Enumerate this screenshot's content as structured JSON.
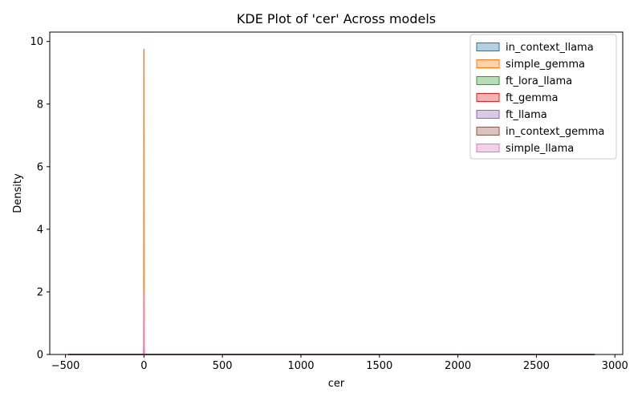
{
  "chart_data": {
    "type": "area",
    "title": "KDE Plot of 'cer' Across models",
    "xlabel": "cer",
    "ylabel": "Density",
    "xlim": [
      -600,
      3050
    ],
    "ylim": [
      0,
      10.3
    ],
    "xticks": [
      -500,
      0,
      500,
      1000,
      1500,
      2000,
      2500,
      3000
    ],
    "yticks": [
      0,
      2,
      4,
      6,
      8,
      10
    ],
    "grid": false,
    "legend_position": "top-right",
    "series": [
      {
        "name": "in_context_llama",
        "color": "#1f77b4",
        "points": [
          [
            -480,
            0
          ],
          [
            -5,
            0
          ],
          [
            0,
            0.05
          ],
          [
            5,
            0
          ],
          [
            2870,
            0
          ]
        ]
      },
      {
        "name": "simple_gemma",
        "color": "#ff7f0e",
        "points": [
          [
            -4,
            0
          ],
          [
            -1,
            0
          ],
          [
            0,
            9.75
          ],
          [
            1,
            0
          ],
          [
            4,
            0
          ]
        ]
      },
      {
        "name": "ft_lora_llama",
        "color": "#2ca02c",
        "points": [
          [
            -10,
            0
          ],
          [
            -2,
            0
          ],
          [
            0,
            0.15
          ],
          [
            2,
            0
          ],
          [
            10,
            0
          ]
        ]
      },
      {
        "name": "ft_gemma",
        "color": "#d62728",
        "points": [
          [
            -480,
            0
          ],
          [
            -10,
            0
          ],
          [
            0,
            0.02
          ],
          [
            10,
            0
          ],
          [
            2870,
            0
          ]
        ]
      },
      {
        "name": "ft_llama",
        "color": "#9467bd",
        "points": [
          [
            -8,
            0
          ],
          [
            -2,
            0
          ],
          [
            0,
            0.3
          ],
          [
            2,
            0
          ],
          [
            8,
            0
          ]
        ]
      },
      {
        "name": "in_context_gemma",
        "color": "#8c564b",
        "points": [
          [
            -480,
            0
          ],
          [
            -15,
            0
          ],
          [
            0,
            0.01
          ],
          [
            15,
            0
          ],
          [
            2870,
            0
          ]
        ]
      },
      {
        "name": "simple_llama",
        "color": "#e377c2",
        "points": [
          [
            -6,
            0
          ],
          [
            -1.5,
            0
          ],
          [
            0,
            2.05
          ],
          [
            0.5,
            0.4
          ],
          [
            1.5,
            0
          ],
          [
            6,
            0
          ]
        ]
      }
    ]
  }
}
